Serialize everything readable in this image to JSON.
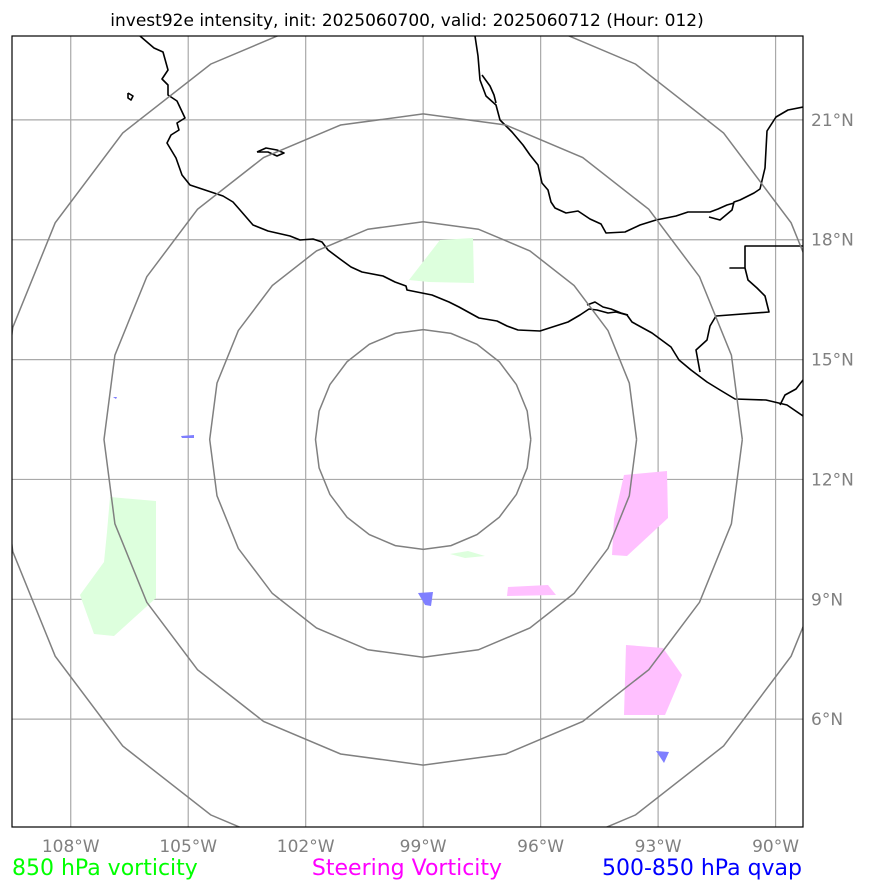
{
  "title": "invest92e intensity, init: 2025060700, valid: 2025060712 (Hour: 012)",
  "map": {
    "lon_min": -109.5,
    "lon_max": -89.3,
    "lat_min": 3.3,
    "lat_max": 23.1,
    "center": {
      "lon": -99,
      "lat": 13
    },
    "lat_ticks": [
      {
        "value": 21,
        "label": "21°N"
      },
      {
        "value": 18,
        "label": "18°N"
      },
      {
        "value": 15,
        "label": "15°N"
      },
      {
        "value": 12,
        "label": "12°N"
      },
      {
        "value": 9,
        "label": "9°N"
      },
      {
        "value": 6,
        "label": "6°N"
      }
    ],
    "lon_ticks": [
      {
        "value": -108,
        "label": "108°W"
      },
      {
        "value": -105,
        "label": "105°W"
      },
      {
        "value": -102,
        "label": "102°W"
      },
      {
        "value": -99,
        "label": "99°W"
      },
      {
        "value": -96,
        "label": "96°W"
      },
      {
        "value": -93,
        "label": "93°W"
      },
      {
        "value": -90,
        "label": "90°W"
      }
    ],
    "range_ring_radii_deg": [
      2.75,
      5.45,
      8.15,
      10.85
    ]
  },
  "legend": {
    "vorticity_850": {
      "label": "850 hPa vorticity",
      "color": "#00ff00"
    },
    "steering": {
      "label": "Steering Vorticity",
      "color": "#ff00ff"
    },
    "qvap": {
      "label": "500-850 hPa qvap",
      "color": "#0000ff"
    }
  },
  "colors": {
    "grid": "#a9a9a9",
    "ring": "#808080",
    "coastline": "#000000",
    "vorticity_fill": "#ddffdd",
    "steering_fill": "#ffc0ff",
    "qvap_fill": "#7f7fff"
  }
}
